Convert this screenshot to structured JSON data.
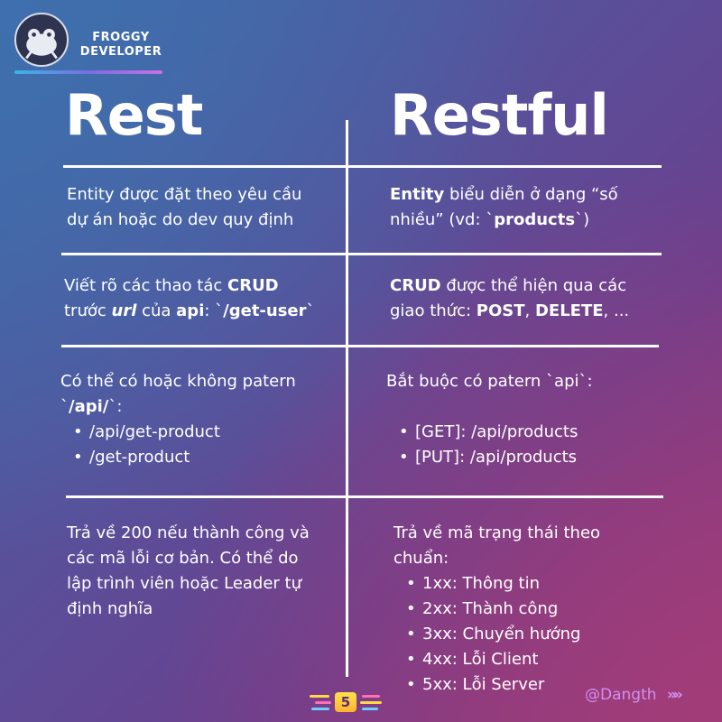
{
  "brand": {
    "line1": "FROGGY",
    "line2": "DEVELOPER"
  },
  "headings": {
    "left": "Rest",
    "right": "Restful"
  },
  "rows": [
    {
      "left": {
        "text": "Entity được đặt theo yêu cầu",
        "text2": "dự án hoặc do dev quy định"
      },
      "right": {
        "bold1": "Entity",
        "text1": " biểu diễn ở dạng “số",
        "text2": "nhiều” (vd: `",
        "bold2": "products",
        "text3": "`)"
      }
    },
    {
      "left": {
        "text1": "Viết rõ các thao tác ",
        "bold1": "CRUD",
        "text2": "trước ",
        "bold2": "url",
        "text3": " của ",
        "bold3": "api",
        "text4": ": `",
        "bold4": "/get-user",
        "text5": "`"
      },
      "right": {
        "bold1": "CRUD",
        "text1": " được thể hiện qua các",
        "text2": "giao thức: ",
        "bold2": "POST",
        "text3": ", ",
        "bold3": "DELETE",
        "text4": ", ..."
      }
    },
    {
      "left": {
        "text1": "Có thể có hoặc không patern",
        "text2": "`",
        "bold1": "/api/",
        "text3": "`:",
        "items": [
          "/api/get-product",
          "/get-product"
        ]
      },
      "right": {
        "text1": "Bắt buộc có patern `api`:",
        "items": [
          "[GET]: /api/products",
          "[PUT]: /api/products"
        ]
      }
    },
    {
      "left": {
        "lines": [
          "Trả về 200 nếu thành công và",
          "các mã lỗi cơ bản. Có thể do",
          "lập trình viên hoặc Leader tự",
          "định nghĩa"
        ]
      },
      "right": {
        "lines": [
          "Trả về mã trạng thái theo",
          "chuẩn:"
        ],
        "items": [
          "1xx: Thông tin",
          "2xx: Thành công",
          "3xx: Chuyển hướng",
          "4xx: Lỗi Client",
          "5xx: Lỗi Server"
        ]
      }
    }
  ],
  "footer": {
    "page": "5",
    "handle": "@Dangth",
    "chevrons": "»»"
  },
  "colors": {
    "accent_purple": "#cf8ff0",
    "page_badge": "#ffc93a"
  },
  "icons": {
    "logo": "frog-logo-icon",
    "next": "chevrons-right-icon"
  }
}
